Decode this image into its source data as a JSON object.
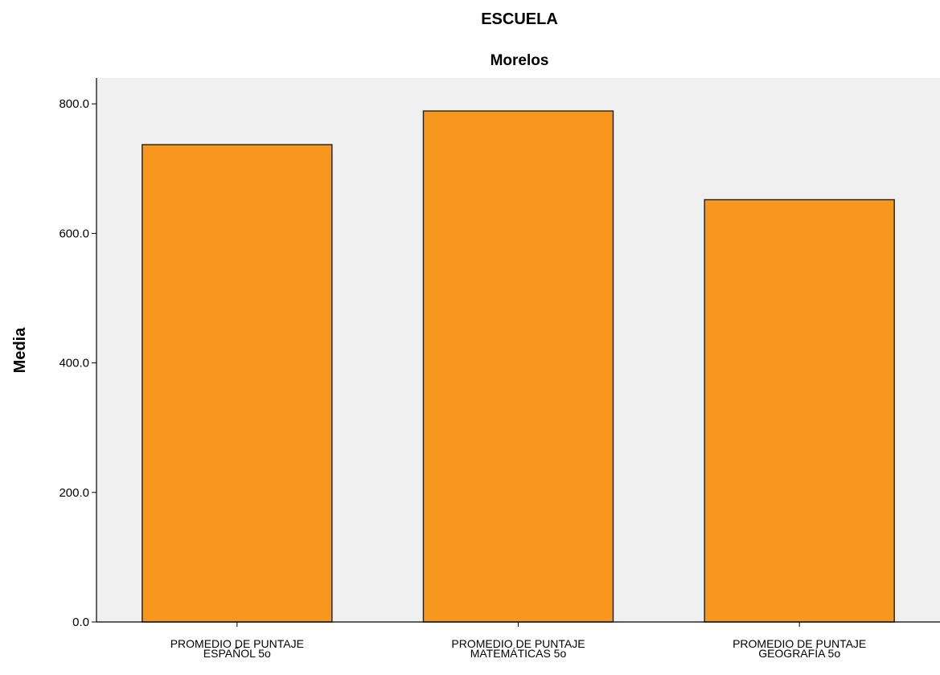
{
  "chart_data": {
    "type": "bar",
    "title": "ESCUELA",
    "subtitle": "Morelos",
    "ylabel": "Media",
    "xlabel": "",
    "categories": [
      [
        "PROMEDIO DE PUNTAJE",
        "ESPAÑOL 5o"
      ],
      [
        "PROMEDIO DE PUNTAJE",
        "MATEMÁTICAS 5o"
      ],
      [
        "PROMEDIO DE PUNTAJE",
        "GEOGRAFÍA 5o"
      ]
    ],
    "values": [
      737,
      789,
      652
    ],
    "ylim": [
      0,
      840
    ],
    "yticks": [
      0,
      200,
      400,
      600,
      800
    ],
    "ytick_labels": [
      "0.0",
      "200.0",
      "400.0",
      "600.0",
      "800.0"
    ],
    "grid": false,
    "legend": "none",
    "colors": {
      "bar_fill": "#f7971e",
      "bar_stroke": "#1f1f1f",
      "plot_background": "#f0f0f0",
      "axis": "#000000"
    }
  }
}
